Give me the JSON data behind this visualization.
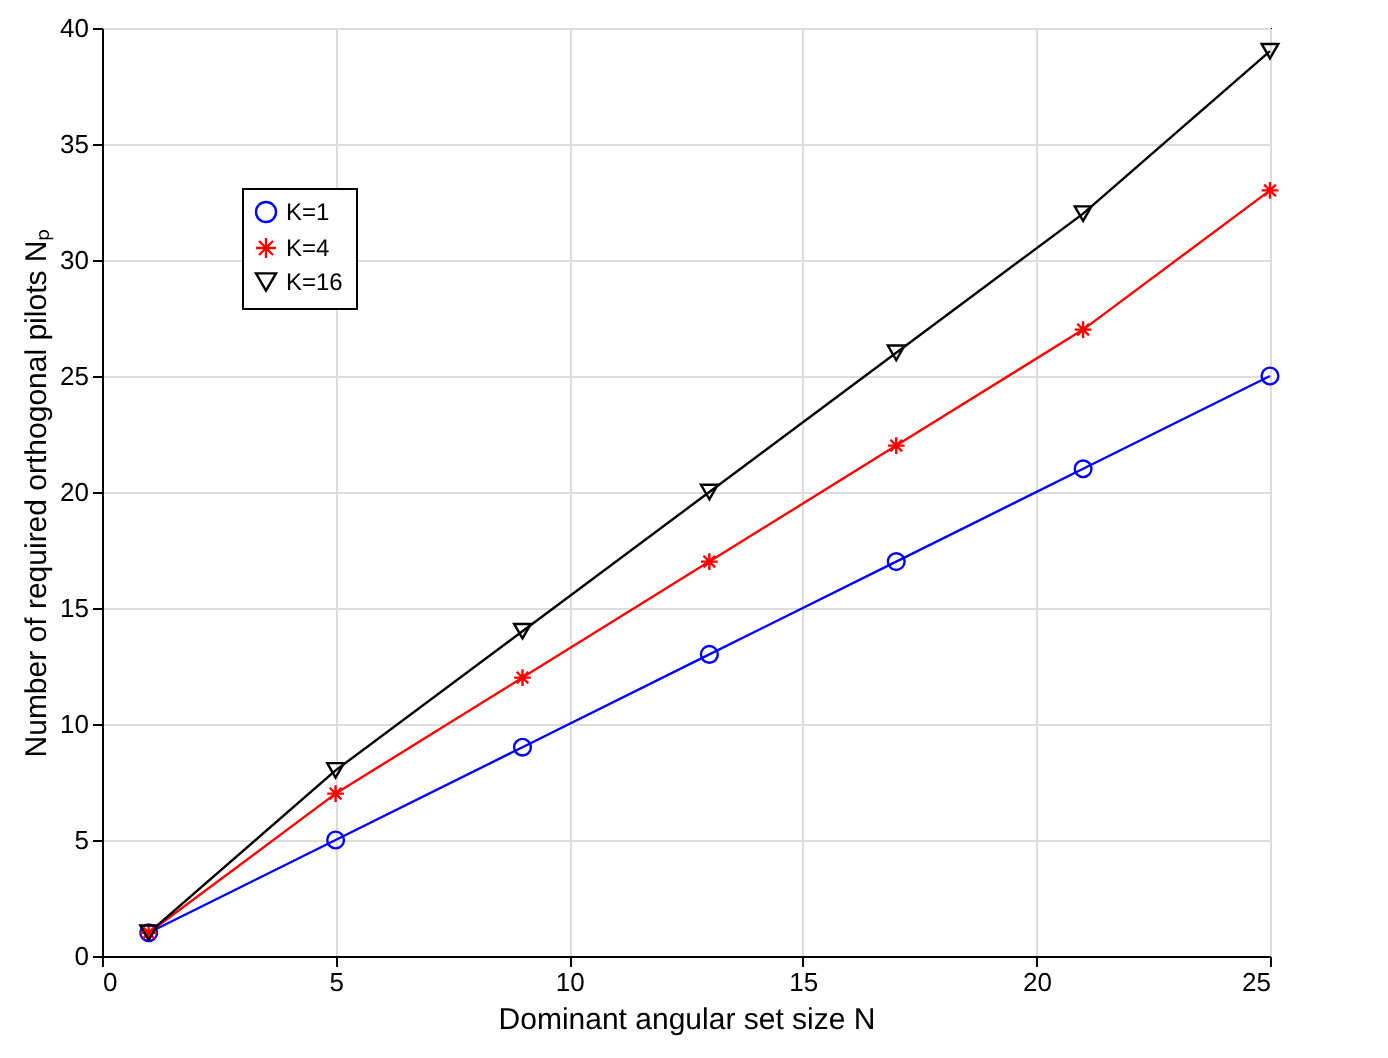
{
  "chart_data": {
    "type": "line",
    "xlabel": "Dominant angular set size N",
    "ylabel": "Number of required orthogonal pilots Nₚ",
    "x": [
      1,
      5,
      9,
      13,
      17,
      21,
      25
    ],
    "series": [
      {
        "name": "K=1",
        "color": "#0000ff",
        "marker": "circle",
        "values": [
          1,
          5,
          9,
          13,
          17,
          21,
          25
        ]
      },
      {
        "name": "K=4",
        "color": "#ff0000",
        "marker": "cross",
        "values": [
          1,
          7,
          12,
          17,
          22,
          27,
          33
        ]
      },
      {
        "name": "K=16",
        "color": "#000000",
        "marker": "triangle",
        "values": [
          1,
          8,
          14,
          20,
          26,
          32,
          39
        ]
      }
    ],
    "xlim": [
      0,
      25
    ],
    "xticks": [
      0,
      5,
      10,
      15,
      20,
      25
    ],
    "ylim": [
      0,
      40
    ],
    "yticks": [
      0,
      5,
      10,
      15,
      20,
      25,
      30,
      35,
      40
    ],
    "grid": true,
    "legend": "top left",
    "line_style": "solid"
  }
}
